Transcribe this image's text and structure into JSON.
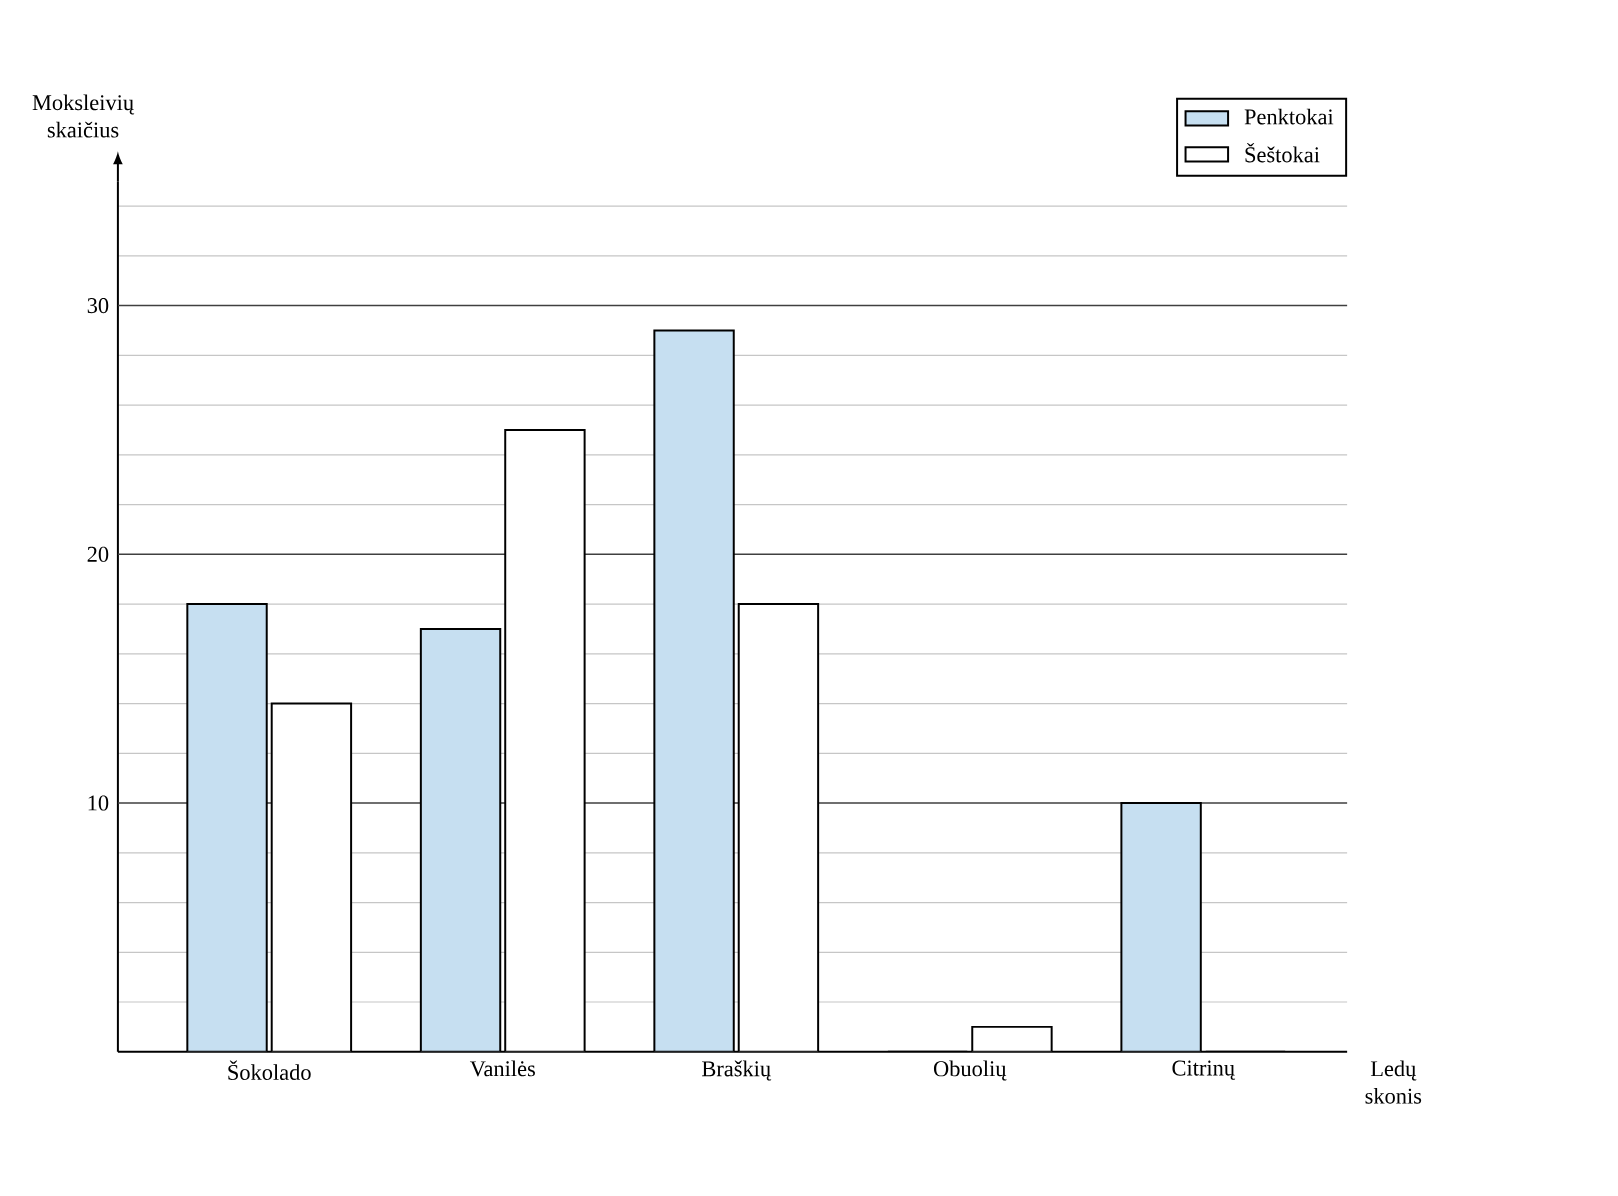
{
  "chart_data": {
    "type": "bar",
    "xlabel": "Ledų skonis",
    "ylabel": "Moksleivių skaičius",
    "categories": [
      "Šokolado",
      "Vanilės",
      "Braškių",
      "Obuolių",
      "Citrinų"
    ],
    "series": [
      {
        "name": "Penktokai",
        "color": "#c6dff1",
        "values": [
          18,
          17,
          29,
          0,
          10
        ]
      },
      {
        "name": "Šeštokai",
        "color": "#ffffff",
        "values": [
          14,
          25,
          18,
          1,
          0
        ]
      }
    ],
    "ylim": [
      0,
      35
    ],
    "yticks": [
      {
        "value": 2,
        "label": null
      },
      {
        "value": 4,
        "label": null
      },
      {
        "value": 6,
        "label": null
      },
      {
        "value": 8,
        "label": null
      },
      10,
      {
        "value": 12,
        "label": null
      },
      {
        "value": 14,
        "label": null
      },
      {
        "value": 16,
        "label": null
      },
      {
        "value": 18,
        "label": null
      },
      20,
      {
        "value": 22,
        "label": null
      },
      {
        "value": 24,
        "label": null
      },
      {
        "value": 26,
        "label": null
      },
      {
        "value": 28,
        "label": null
      },
      30,
      {
        "value": 32,
        "label": null
      },
      {
        "value": 34,
        "label": null
      }
    ],
    "grid": "y",
    "legend": "top right"
  }
}
